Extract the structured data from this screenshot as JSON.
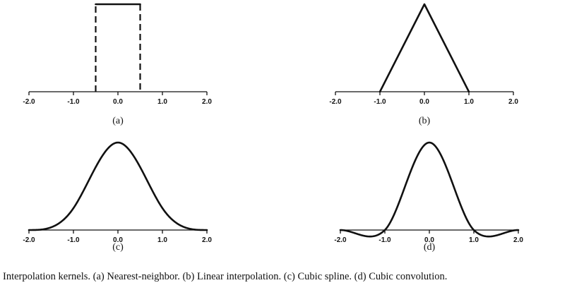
{
  "caption": "Interpolation kernels. (a) Nearest-neighbor. (b) Linear interpolation. (c) Cubic spline. (d) Cubic convolution.",
  "chart_data": [
    {
      "type": "line",
      "panel_label": "(a)",
      "x_ticks": [
        -2.0,
        -1.0,
        0.0,
        1.0,
        2.0
      ],
      "tick_labels": [
        "-2.0",
        "-1.0",
        "0.0",
        "1.0",
        "2.0"
      ],
      "xlim": [
        -2.0,
        2.0
      ],
      "ylim": [
        0,
        1
      ],
      "kernel": "nearest",
      "points": [
        [
          -0.5,
          0
        ],
        [
          -0.5,
          1
        ],
        [
          0.5,
          1
        ],
        [
          0.5,
          0
        ]
      ]
    },
    {
      "type": "line",
      "panel_label": "(b)",
      "x_ticks": [
        -2.0,
        -1.0,
        0.0,
        1.0,
        2.0
      ],
      "tick_labels": [
        "-2.0",
        "-1.0",
        "0.0",
        "1.0",
        "2.0"
      ],
      "xlim": [
        -2.0,
        2.0
      ],
      "ylim": [
        0,
        1
      ],
      "kernel": "linear",
      "points": [
        [
          -1.0,
          0
        ],
        [
          0.0,
          1
        ],
        [
          1.0,
          0
        ]
      ]
    },
    {
      "type": "line",
      "panel_label": "(c)",
      "x_ticks": [
        -2.0,
        -1.0,
        0.0,
        1.0,
        2.0
      ],
      "tick_labels": [
        "-2.0",
        "-1.0",
        "0.0",
        "1.0",
        "2.0"
      ],
      "xlim": [
        -2.0,
        2.0
      ],
      "ylim": [
        0,
        1
      ],
      "kernel": "cubic_spline"
    },
    {
      "type": "line",
      "panel_label": "(d)",
      "x_ticks": [
        -2.0,
        -1.0,
        0.0,
        1.0,
        2.0
      ],
      "tick_labels": [
        "-2.0",
        "-1.0",
        "0.0",
        "1.0",
        "2.0"
      ],
      "xlim": [
        -2.0,
        2.0
      ],
      "ylim": [
        -0.1,
        1
      ],
      "kernel": "cubic_convolution"
    }
  ]
}
